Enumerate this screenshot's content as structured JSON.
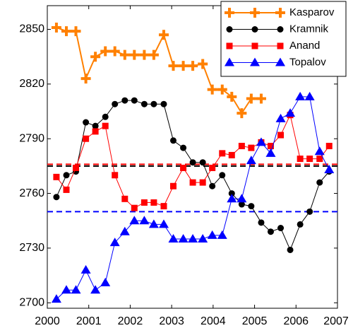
{
  "chart_data": {
    "type": "line",
    "x": [
      2000.22,
      2000.46,
      2000.69,
      2000.93,
      2001.16,
      2001.4,
      2001.63,
      2001.87,
      2002.1,
      2002.34,
      2002.57,
      2002.81,
      2003.04,
      2003.28,
      2003.51,
      2003.75,
      2003.98,
      2004.22,
      2004.45,
      2004.69,
      2004.92,
      2005.16,
      2005.39,
      2005.63,
      2005.86,
      2006.1,
      2006.33,
      2006.57,
      2006.8
    ],
    "series": [
      {
        "name": "Kasparov",
        "color": "#ff8000",
        "marker": "plus",
        "values": [
          2851,
          2849,
          2849,
          2823,
          2835,
          2838,
          2838,
          2836,
          2836,
          2836,
          2836,
          2847,
          2830,
          2830,
          2830,
          2831,
          2817,
          2817,
          2813,
          2804,
          2812,
          2812,
          null,
          null,
          null,
          null,
          null,
          null,
          null
        ]
      },
      {
        "name": "Kramnik",
        "color": "#000000",
        "marker": "circle",
        "values": [
          2758,
          2770,
          2772,
          2799,
          2797,
          2802,
          2809,
          2811,
          2811,
          2809,
          2809,
          2809,
          2789,
          2785,
          2777,
          2777,
          2764,
          2770,
          2760,
          2754,
          2753,
          2744,
          2739,
          2741,
          2729,
          2743,
          2750,
          2766,
          2772
        ]
      },
      {
        "name": "Anand",
        "color": "#ff0000",
        "marker": "square",
        "values": [
          2769,
          2762,
          2774,
          2790,
          2794,
          2797,
          2770,
          2757,
          2752,
          2755,
          2755,
          2753,
          2764,
          2774,
          2766,
          2766,
          2774,
          2782,
          2781,
          2786,
          2785,
          2788,
          2786,
          2792,
          2803,
          2779,
          2779,
          2779,
          2786
        ]
      },
      {
        "name": "Topalov",
        "color": "#0000ff",
        "marker": "triangle",
        "values": [
          2702,
          2707,
          2707,
          2718,
          2707,
          2711,
          2733,
          2739,
          2745,
          2745,
          2743,
          2743,
          2735,
          2735,
          2735,
          2735,
          2737,
          2737,
          2757,
          2757,
          2778,
          2788,
          2782,
          2801,
          2804,
          2813,
          2813,
          2783,
          2773
        ]
      }
    ],
    "hlines": [
      {
        "value": 2776,
        "color": "#ff0000"
      },
      {
        "value": 2775,
        "color": "#000000"
      },
      {
        "value": 2750,
        "color": "#0000ff"
      }
    ],
    "xlim": [
      2000,
      2007
    ],
    "xticks": [
      2000,
      2001,
      2002,
      2003,
      2004,
      2005,
      2006,
      2007
    ],
    "ylim": [
      2697,
      2863
    ],
    "yticks": [
      2700,
      2730,
      2760,
      2790,
      2820,
      2850
    ],
    "grid": false,
    "legend": "upper right"
  }
}
